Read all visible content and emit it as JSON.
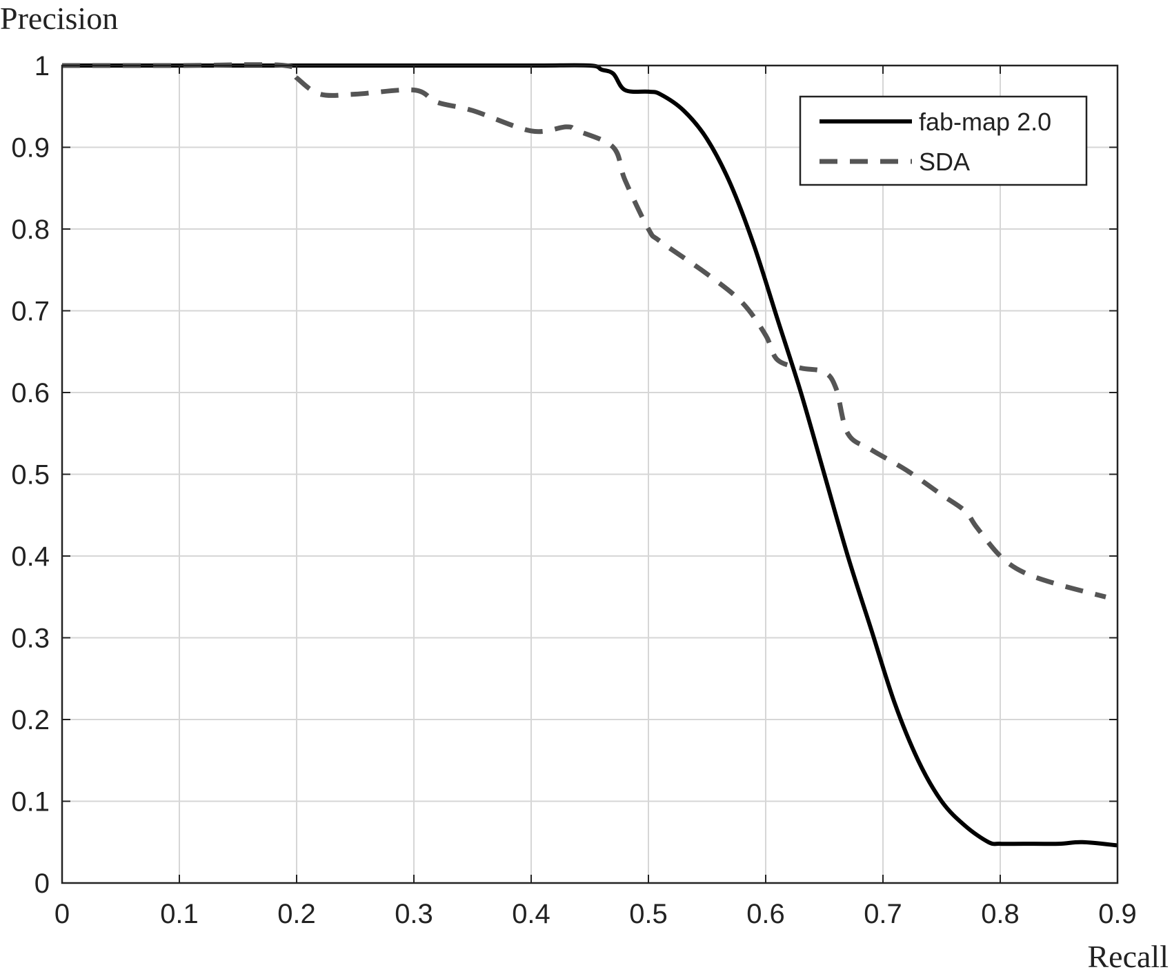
{
  "chart_data": {
    "type": "line",
    "title": "",
    "xlabel": "Recall",
    "ylabel": "Precision",
    "xlim": [
      0,
      0.9
    ],
    "ylim": [
      0,
      1
    ],
    "xticks": [
      0,
      0.1,
      0.2,
      0.3,
      0.4,
      0.5,
      0.6,
      0.7,
      0.8,
      0.9
    ],
    "yticks": [
      0,
      0.1,
      0.2,
      0.3,
      0.4,
      0.5,
      0.6,
      0.7,
      0.8,
      0.9,
      1
    ],
    "xtick_labels": [
      "0",
      "0.1",
      "0.2",
      "0.3",
      "0.4",
      "0.5",
      "0.6",
      "0.7",
      "0.8",
      "0.9"
    ],
    "ytick_labels": [
      "0",
      "0.1",
      "0.2",
      "0.3",
      "0.4",
      "0.5",
      "0.6",
      "0.7",
      "0.8",
      "0.9",
      "1"
    ],
    "grid": true,
    "legend_position": "top-right",
    "series": [
      {
        "name": "fab-map 2.0",
        "style": "solid",
        "color": "#000000",
        "x": [
          0,
          0.1,
          0.2,
          0.3,
          0.4,
          0.45,
          0.46,
          0.47,
          0.48,
          0.5,
          0.51,
          0.53,
          0.55,
          0.57,
          0.59,
          0.61,
          0.63,
          0.65,
          0.67,
          0.69,
          0.71,
          0.73,
          0.75,
          0.77,
          0.79,
          0.8,
          0.82,
          0.85,
          0.87,
          0.9
        ],
        "y": [
          1,
          1,
          1,
          1,
          1,
          1,
          0.995,
          0.99,
          0.97,
          0.968,
          0.965,
          0.945,
          0.91,
          0.855,
          0.78,
          0.69,
          0.6,
          0.5,
          0.4,
          0.31,
          0.22,
          0.15,
          0.1,
          0.07,
          0.05,
          0.048,
          0.048,
          0.048,
          0.05,
          0.046
        ]
      },
      {
        "name": "SDA",
        "style": "dashed",
        "color": "#555555",
        "x": [
          0,
          0.1,
          0.19,
          0.2,
          0.22,
          0.25,
          0.3,
          0.32,
          0.35,
          0.4,
          0.43,
          0.44,
          0.47,
          0.48,
          0.5,
          0.51,
          0.55,
          0.58,
          0.6,
          0.61,
          0.63,
          0.65,
          0.66,
          0.67,
          0.69,
          0.72,
          0.75,
          0.77,
          0.78,
          0.8,
          0.82,
          0.85,
          0.89
        ],
        "y": [
          1,
          1,
          1,
          0.985,
          0.965,
          0.965,
          0.97,
          0.955,
          0.945,
          0.92,
          0.925,
          0.92,
          0.9,
          0.86,
          0.8,
          0.785,
          0.745,
          0.71,
          0.67,
          0.64,
          0.63,
          0.625,
          0.605,
          0.55,
          0.53,
          0.505,
          0.475,
          0.455,
          0.435,
          0.4,
          0.38,
          0.365,
          0.35
        ]
      }
    ]
  }
}
